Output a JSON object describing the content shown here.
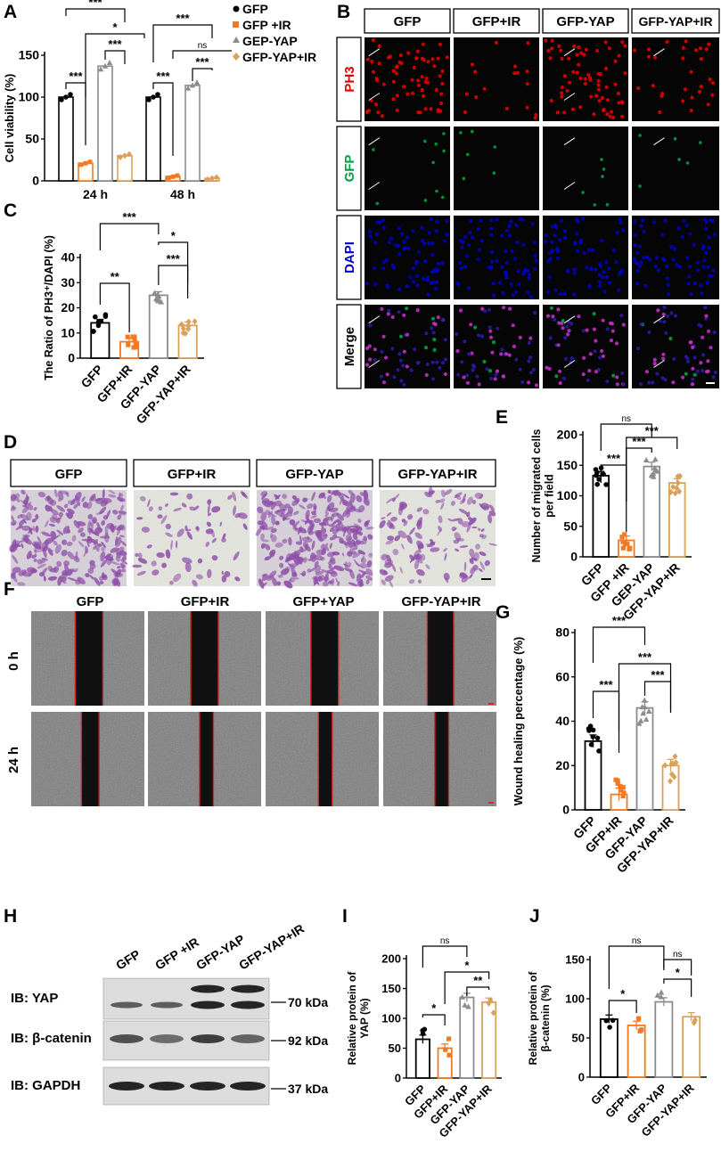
{
  "colors": {
    "gfp": "#000000",
    "gfp_ir": "#F47920",
    "gfp_yap": "#8C8C8C",
    "gfp_yap_ir": "#D9A15A",
    "ph3_red": "#E00000",
    "gfp_green": "#00A040",
    "dapi_blue": "#0000C8",
    "crystal_violet": "#8E4FA8",
    "scratch_red": "#E02020"
  },
  "panels": {
    "A": "A",
    "B": "B",
    "C": "C",
    "D": "D",
    "E": "E",
    "F": "F",
    "G": "G",
    "H": "H",
    "I": "I",
    "J": "J"
  },
  "panelB": {
    "columns": [
      "GFP",
      "GFP+IR",
      "GFP-YAP",
      "GFP-YAP+IR"
    ],
    "rows": [
      "PH3",
      "GFP",
      "DAPI",
      "Merge"
    ]
  },
  "panelD": {
    "columns": [
      "GFP",
      "GFP+IR",
      "GFP-YAP",
      "GFP-YAP+IR"
    ]
  },
  "panelF": {
    "columns": [
      "GFP",
      "GFP+IR",
      "GFP+YAP",
      "GFP-YAP+IR"
    ],
    "rows": [
      "0 h",
      "24 h"
    ]
  },
  "panelH": {
    "lanes": [
      "GFP",
      "GFP +IR",
      "GFP-YAP",
      "GFP-YAP+IR"
    ],
    "blots": [
      {
        "label": "IB: YAP",
        "size": "70 kDa"
      },
      {
        "label": "IB: β-catenin",
        "size": "92 kDa"
      },
      {
        "label": "IB: GAPDH",
        "size": "37 kDa"
      }
    ]
  },
  "chart_data": [
    {
      "id": "A",
      "type": "bar",
      "ylabel": "Cell viability (%)",
      "ylim": [
        0,
        150
      ],
      "yticks": [
        0,
        50,
        100,
        150
      ],
      "categories": [
        "24 h",
        "48 h"
      ],
      "legend": [
        "GFP",
        "GFP +IR",
        "GEP-YAP",
        "GFP-YAP+IR"
      ],
      "series": [
        {
          "name": "GFP",
          "values": [
            100,
            100
          ]
        },
        {
          "name": "GFP +IR",
          "values": [
            21,
            5
          ]
        },
        {
          "name": "GEP-YAP",
          "values": [
            137,
            114
          ]
        },
        {
          "name": "GFP-YAP+IR",
          "values": [
            30,
            3
          ]
        }
      ],
      "significance": [
        "***",
        "*",
        "***",
        "***",
        "***",
        "ns",
        "***",
        "***",
        "***",
        "***"
      ]
    },
    {
      "id": "C",
      "type": "bar",
      "ylabel": "The Ratio of PH3⁺/DAPI (%)",
      "ylim": [
        0,
        40
      ],
      "yticks": [
        0,
        10,
        20,
        30,
        40
      ],
      "categories": [
        "GFP",
        "GFP+IR",
        "GFP-YAP",
        "GFP-YAP+IR"
      ],
      "values": [
        14,
        6.5,
        25,
        13
      ],
      "significance": [
        "***",
        "*",
        "**",
        "***"
      ]
    },
    {
      "id": "E",
      "type": "bar",
      "ylabel": "Number of migrated cells per field",
      "ylim": [
        0,
        200
      ],
      "yticks": [
        0,
        50,
        100,
        150,
        200
      ],
      "categories": [
        "GFP",
        "GFP +IR",
        "GEP-YAP",
        "GFP-YAP+IR"
      ],
      "values": [
        133,
        27,
        148,
        121
      ],
      "significance": [
        "ns",
        "***",
        "***",
        "***"
      ]
    },
    {
      "id": "G",
      "type": "bar",
      "ylabel": "Wound healing percentage (%)",
      "ylim": [
        0,
        80
      ],
      "yticks": [
        0,
        20,
        40,
        60,
        80
      ],
      "categories": [
        "GFP",
        "GFP+IR",
        "GFP-YAP",
        "GFP-YAP+IR"
      ],
      "values": [
        31,
        7,
        46,
        20
      ],
      "significance": [
        "***",
        "***",
        "***",
        "***"
      ]
    },
    {
      "id": "I",
      "type": "bar",
      "ylabel": "Relative protein of YAP (%)",
      "ylim": [
        0,
        200
      ],
      "yticks": [
        0,
        50,
        100,
        150,
        200
      ],
      "categories": [
        "GFP",
        "GFP+IR",
        "GFP-YAP",
        "GFP-YAP+IR"
      ],
      "values": [
        65,
        50,
        135,
        127
      ],
      "significance": [
        "ns",
        "*",
        "*",
        "**"
      ]
    },
    {
      "id": "J",
      "type": "bar",
      "ylabel": "Relative protein of β-catenin (%)",
      "ylim": [
        0,
        150
      ],
      "yticks": [
        0,
        50,
        100,
        150
      ],
      "categories": [
        "GFP",
        "GFP+IR",
        "GFP-YAP",
        "GFP-YAP+IR"
      ],
      "values": [
        74,
        66,
        96,
        77
      ],
      "significance": [
        "ns",
        "ns",
        "*",
        "*"
      ]
    }
  ]
}
